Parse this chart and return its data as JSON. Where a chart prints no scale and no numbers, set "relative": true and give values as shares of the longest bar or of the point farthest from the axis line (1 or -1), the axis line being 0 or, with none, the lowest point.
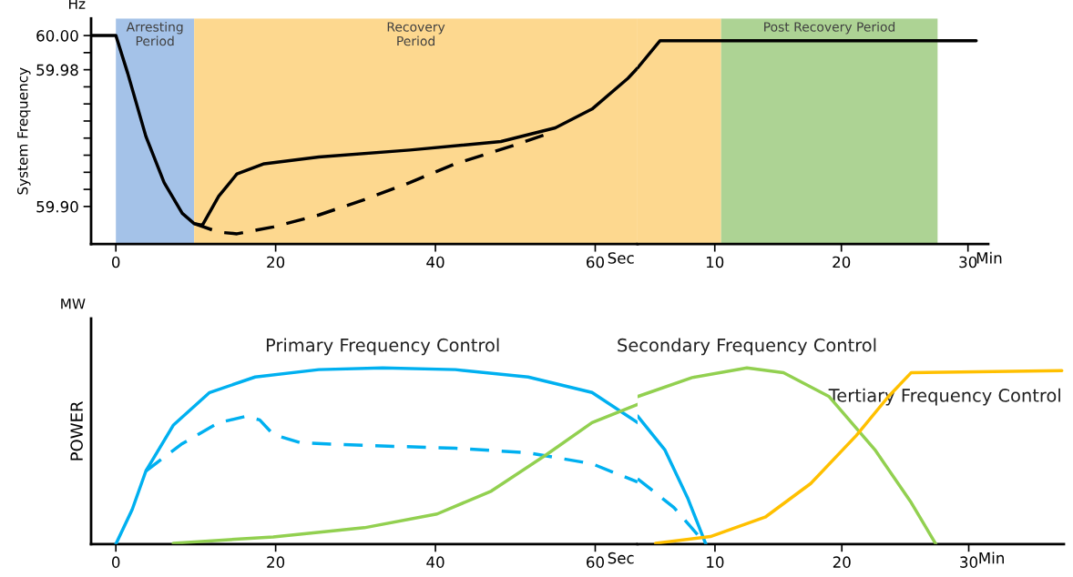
{
  "chart_data": [
    {
      "type": "line",
      "ylabel": "System Frequency",
      "annotations": [
        "Hz"
      ],
      "xlim": [
        -3.1,
        65.3
      ],
      "ylim": [
        59.878,
        60.01
      ],
      "xticks": [
        0,
        20,
        40,
        60
      ],
      "xlabel": "Sec",
      "yticks": [
        {
          "value": 60.0,
          "label": "60.00"
        },
        {
          "value": 59.99,
          "label": null
        },
        {
          "value": 59.98,
          "label": "59.98"
        },
        {
          "value": 59.97,
          "label": null
        },
        {
          "value": 59.96,
          "label": null
        },
        {
          "value": 59.95,
          "label": null
        },
        {
          "value": 59.94,
          "label": null
        },
        {
          "value": 59.93,
          "label": null
        },
        {
          "value": 59.92,
          "label": null
        },
        {
          "value": 59.91,
          "label": null
        },
        {
          "value": 59.9,
          "label": "59.90"
        }
      ],
      "bands": [
        {
          "axis": "x",
          "from": 0,
          "to": 9.8,
          "label": "Arresting\nPeriod",
          "color": "#a4c2e8"
        },
        {
          "axis": "x",
          "from": 9.8,
          "to": 65.3,
          "label": "Recovery\nPeriod",
          "color": "#fdd88f"
        }
      ],
      "series": [
        {
          "color": "#000000",
          "line_style": "solid",
          "x": [
            -3.0,
            0,
            1.48,
            3.76,
            6.04,
            8.31,
            9.79,
            10.82,
            12.87,
            15.15,
            18.56,
            25.4,
            36.8,
            48.2,
            55.0,
            59.6,
            64.1,
            65.3
          ],
          "values": [
            60.0,
            60.0,
            59.978,
            59.941,
            59.914,
            59.896,
            59.89,
            59.889,
            59.906,
            59.919,
            59.925,
            59.929,
            59.933,
            59.938,
            59.946,
            59.957,
            59.975,
            59.981
          ]
        },
        {
          "color": "#000000",
          "line_style": "dashed",
          "x": [
            9.79,
            12.87,
            15.15,
            19.7,
            25.4,
            31.1,
            36.8,
            42.5,
            49.3,
            55.0
          ],
          "values": [
            59.89,
            59.885,
            59.884,
            59.888,
            59.895,
            59.904,
            59.914,
            59.925,
            59.935,
            59.944
          ]
        }
      ]
    },
    {
      "type": "line",
      "tick_labels": "x",
      "xlim": [
        3.9,
        31.6
      ],
      "ylim": [
        59.878,
        60.01
      ],
      "xticks": [
        10,
        20,
        30
      ],
      "xlabel": "Min",
      "bands": [
        {
          "axis": "x",
          "from": 3.9,
          "to": 10.5,
          "color": "#fdd88f"
        },
        {
          "axis": "x",
          "from": 10.5,
          "to": 27.6,
          "label": "Post Recovery Period",
          "color": "#add394"
        }
      ],
      "series": [
        {
          "color": "#000000",
          "line_style": "solid",
          "x": [
            3.9,
            5.68,
            30.65
          ],
          "values": [
            59.981,
            59.997,
            59.997
          ]
        }
      ]
    },
    {
      "type": "line",
      "ylabel": "POWER",
      "annotations": [
        "MW"
      ],
      "relative": true,
      "tick_labels": "x",
      "xlim": [
        -3.1,
        65.3
      ],
      "xticks": [
        0,
        20,
        40,
        60
      ],
      "xlabel": "Sec",
      "series": [
        {
          "name": "Primary Frequency Control",
          "color": "#00b0f0",
          "line_style": "solid",
          "x": [
            0,
            2.05,
            3.76,
            7.18,
            11.73,
            17.43,
            25.4,
            33.4,
            42.5,
            51.6,
            59.6,
            65.3
          ],
          "values": [
            0,
            0.197,
            0.415,
            0.674,
            0.86,
            0.948,
            0.99,
            1,
            0.99,
            0.948,
            0.86,
            0.689
          ]
        },
        {
          "color": "#00b0f0",
          "line_style": "dashed",
          "x": [
            3.76,
            8.31,
            12.87,
            16.29,
            18.0,
            19.7,
            23.1,
            31.1,
            42.5,
            51.6,
            59.6,
            65.3
          ],
          "values": [
            0.415,
            0.57,
            0.689,
            0.725,
            0.705,
            0.622,
            0.575,
            0.56,
            0.544,
            0.518,
            0.456,
            0.352
          ]
        },
        {
          "color": "#92d050",
          "line_style": "solid",
          "x": [
            7.18,
            19.7,
            31.1,
            40.2,
            47.0,
            53.9,
            59.6,
            65.3
          ],
          "values": [
            0.005,
            0.041,
            0.093,
            0.171,
            0.301,
            0.508,
            0.689,
            0.793
          ]
        }
      ]
    },
    {
      "type": "line",
      "relative": true,
      "tick_labels": "x",
      "xlim": [
        3.9,
        37.5
      ],
      "xticks": [
        10,
        20,
        30
      ],
      "xlabel": "Min",
      "series": [
        {
          "color": "#00b0f0",
          "line_style": "solid",
          "x": [
            3.9,
            6.04,
            7.84,
            9.28
          ],
          "values": [
            0.727,
            0.536,
            0.263,
            0
          ]
        },
        {
          "color": "#00b0f0",
          "line_style": "dashed",
          "x": [
            3.9,
            6.76,
            9.28
          ],
          "values": [
            0.371,
            0.208,
            0
          ]
        },
        {
          "name": "Secondary Frequency Control",
          "color": "#92d050",
          "line_style": "solid",
          "x": [
            3.9,
            8.2,
            12.52,
            15.4,
            19.0,
            22.6,
            25.47,
            27.41
          ],
          "values": [
            0.837,
            0.945,
            1,
            0.973,
            0.837,
            0.536,
            0.235,
            0
          ]
        },
        {
          "name": "Tertiary Frequency Control",
          "color": "#ffc000",
          "line_style": "solid",
          "x": [
            5.32,
            9.64,
            13.96,
            17.55,
            21.15,
            23.67,
            25.47,
            37.34
          ],
          "values": [
            0.005,
            0.043,
            0.153,
            0.344,
            0.617,
            0.837,
            0.973,
            0.984
          ]
        }
      ]
    }
  ]
}
